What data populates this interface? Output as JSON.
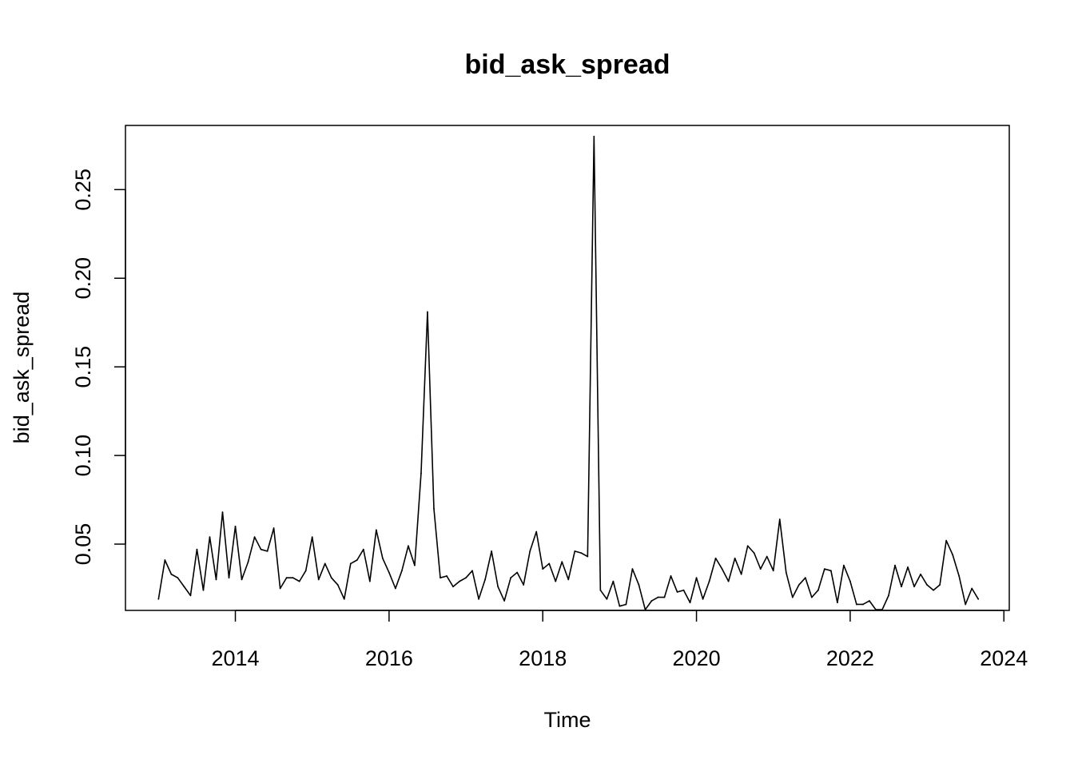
{
  "chart_data": {
    "type": "line",
    "title": "bid_ask_spread",
    "xlabel": "Time",
    "ylabel": "bid_ask_spread",
    "xlim": [
      2012.57,
      2024.07
    ],
    "ylim": [
      0.0126,
      0.2862
    ],
    "x_ticks": [
      2014,
      2016,
      2018,
      2020,
      2022,
      2024
    ],
    "x_tick_labels": [
      "2014",
      "2016",
      "2018",
      "2020",
      "2022",
      "2024"
    ],
    "y_ticks": [
      0.05,
      0.1,
      0.15,
      0.2,
      0.25
    ],
    "y_tick_labels": [
      "0.05",
      "0.10",
      "0.15",
      "0.20",
      "0.25"
    ],
    "grid": false,
    "legend": "none",
    "series": [
      {
        "color": "#000000",
        "start": 2013.0,
        "frequency": 12,
        "values": [
          0.019,
          0.041,
          0.033,
          0.031,
          0.026,
          0.021,
          0.047,
          0.024,
          0.054,
          0.03,
          0.068,
          0.031,
          0.06,
          0.03,
          0.04,
          0.054,
          0.047,
          0.046,
          0.059,
          0.025,
          0.031,
          0.031,
          0.029,
          0.035,
          0.054,
          0.03,
          0.039,
          0.031,
          0.027,
          0.019,
          0.039,
          0.041,
          0.047,
          0.029,
          0.058,
          0.042,
          0.034,
          0.025,
          0.035,
          0.049,
          0.038,
          0.09,
          0.181,
          0.07,
          0.031,
          0.032,
          0.026,
          0.029,
          0.031,
          0.035,
          0.019,
          0.03,
          0.046,
          0.026,
          0.018,
          0.031,
          0.034,
          0.027,
          0.046,
          0.057,
          0.036,
          0.039,
          0.029,
          0.04,
          0.03,
          0.046,
          0.045,
          0.043,
          0.28,
          0.024,
          0.019,
          0.029,
          0.015,
          0.016,
          0.036,
          0.027,
          0.013,
          0.018,
          0.02,
          0.02,
          0.032,
          0.023,
          0.024,
          0.017,
          0.031,
          0.019,
          0.029,
          0.042,
          0.036,
          0.029,
          0.042,
          0.033,
          0.049,
          0.045,
          0.036,
          0.043,
          0.035,
          0.064,
          0.034,
          0.02,
          0.027,
          0.031,
          0.02,
          0.024,
          0.036,
          0.035,
          0.017,
          0.038,
          0.029,
          0.016,
          0.016,
          0.018,
          0.013,
          0.013,
          0.021,
          0.038,
          0.026,
          0.037,
          0.026,
          0.033,
          0.027,
          0.024,
          0.027,
          0.052,
          0.044,
          0.032,
          0.016,
          0.025,
          0.019
        ]
      }
    ]
  }
}
